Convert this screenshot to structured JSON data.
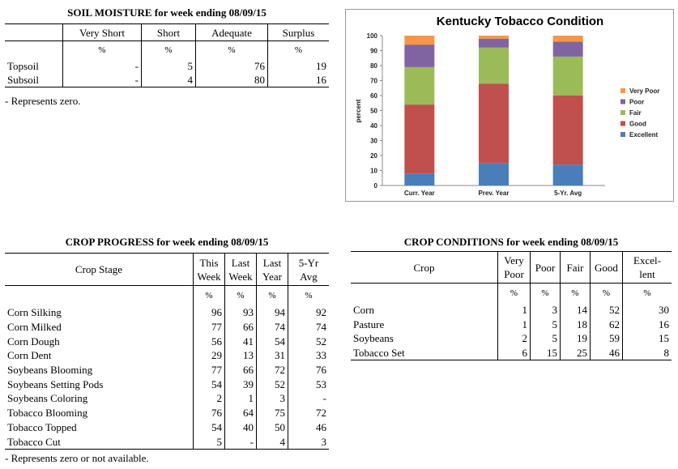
{
  "soil": {
    "title": "SOIL MOISTURE for week ending 08/09/15",
    "headers": [
      "",
      "Very Short",
      "Short",
      "Adequate",
      "Surplus"
    ],
    "units": [
      "",
      "%",
      "%",
      "%",
      "%"
    ],
    "rows": [
      [
        "Topsoil",
        "-",
        "5",
        "76",
        "19"
      ],
      [
        "Subsoil",
        "-",
        "4",
        "80",
        "16"
      ]
    ],
    "note": "- Represents zero."
  },
  "progress": {
    "title": "CROP PROGRESS for week ending 08/09/15",
    "headers": [
      "Crop Stage",
      "This Week",
      "Last Week",
      "Last Year",
      "5-Yr Avg"
    ],
    "units": [
      "",
      "%",
      "%",
      "%",
      "%"
    ],
    "rows": [
      [
        "Corn Silking",
        "96",
        "93",
        "94",
        "92"
      ],
      [
        "Corn Milked",
        "77",
        "66",
        "74",
        "74"
      ],
      [
        "Corn Dough",
        "56",
        "41",
        "54",
        "52"
      ],
      [
        "Corn Dent",
        "29",
        "13",
        "31",
        "33"
      ],
      [
        "Soybeans Blooming",
        "77",
        "66",
        "72",
        "76"
      ],
      [
        "Soybeans Setting Pods",
        "54",
        "39",
        "52",
        "53"
      ],
      [
        "Soybeans Coloring",
        "2",
        "1",
        "3",
        "-"
      ],
      [
        "Tobacco Blooming",
        "76",
        "64",
        "75",
        "72"
      ],
      [
        "Tobacco Topped",
        "54",
        "40",
        "50",
        "46"
      ],
      [
        "Tobacco Cut",
        "5",
        "-",
        "4",
        "3"
      ]
    ],
    "note": "- Represents zero or not available."
  },
  "conditions": {
    "title": "CROP CONDITIONS for week ending 08/09/15",
    "headers": [
      "Crop",
      "Very Poor",
      "Poor",
      "Fair",
      "Good",
      "Excel- lent"
    ],
    "units": [
      "",
      "%",
      "%",
      "%",
      "%",
      "%"
    ],
    "rows": [
      [
        "Corn",
        "1",
        "3",
        "14",
        "52",
        "30"
      ],
      [
        "Pasture",
        "1",
        "5",
        "18",
        "62",
        "16"
      ],
      [
        "Soybeans",
        "2",
        "5",
        "19",
        "59",
        "15"
      ],
      [
        "Tobacco Set",
        "6",
        "15",
        "25",
        "46",
        "8"
      ]
    ]
  },
  "chart_data": {
    "type": "bar",
    "stacked": true,
    "title": "Kentucky Tobacco Condition",
    "ylabel": "percent",
    "xlabel": "",
    "ylim": [
      0,
      100
    ],
    "yticks": [
      "0",
      "10",
      "20",
      "30",
      "40",
      "50",
      "60",
      "70",
      "80",
      "90",
      "100"
    ],
    "categories": [
      "Curr. Year",
      "Prev. Year",
      "5-Yr. Avg"
    ],
    "series": [
      {
        "name": "Excellent",
        "color": "#4a7ebb",
        "values": [
          8,
          15,
          14
        ]
      },
      {
        "name": "Good",
        "color": "#c0504d",
        "values": [
          46,
          53,
          46
        ]
      },
      {
        "name": "Fair",
        "color": "#9bbb59",
        "values": [
          25,
          24,
          26
        ]
      },
      {
        "name": "Poor",
        "color": "#8064a2",
        "values": [
          15,
          6,
          10
        ]
      },
      {
        "name": "Very Poor",
        "color": "#f79646",
        "values": [
          6,
          2,
          4
        ]
      }
    ],
    "legend_position": "right",
    "grid": false
  }
}
